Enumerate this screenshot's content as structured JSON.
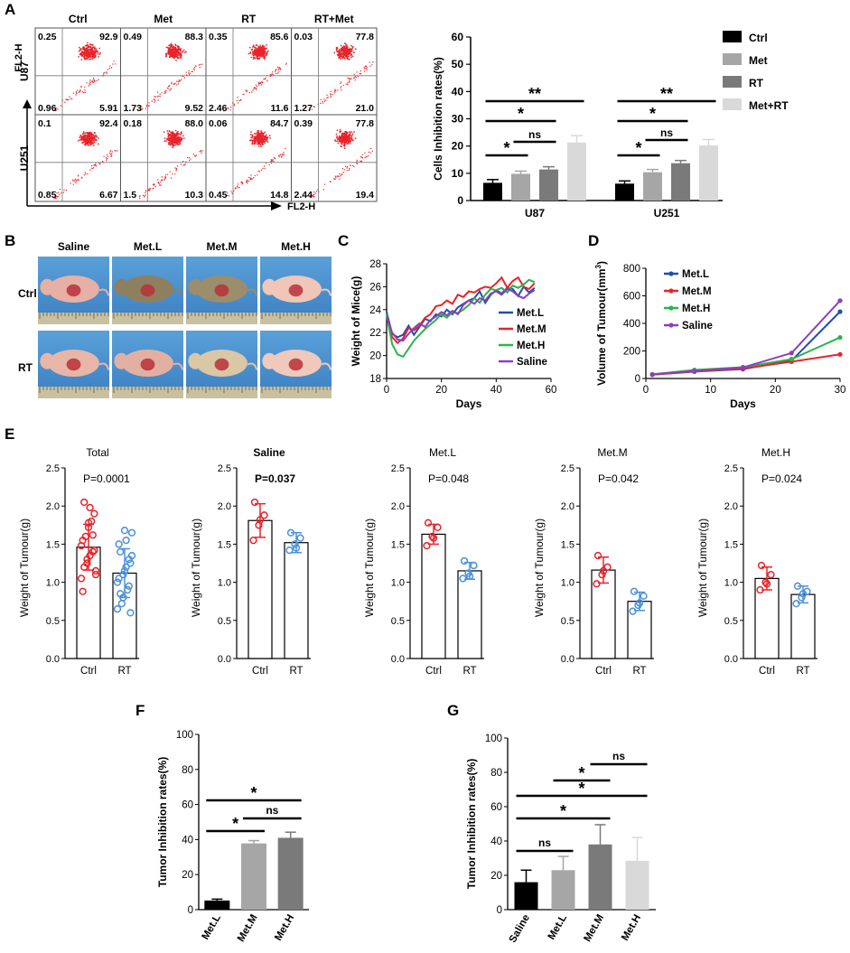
{
  "panels": {
    "A": "A",
    "B": "B",
    "C": "C",
    "D": "D",
    "E": "E",
    "F": "F",
    "G": "G"
  },
  "colors": {
    "ctrl": "#000000",
    "met": "#a6a6a6",
    "rt": "#7a7a7a",
    "met_rt": "#d9d9d9",
    "red": "#e8232a",
    "blue": "#4a90d9",
    "line_metL": "#1f4fa8",
    "line_metM": "#e8232a",
    "line_metH": "#2db34a",
    "line_saline": "#8b3fbf"
  },
  "flow": {
    "columns": [
      "Ctrl",
      "Met",
      "RT",
      "RT+Met"
    ],
    "rows": [
      "U87",
      "U251"
    ],
    "ylabel": "FL2-H",
    "xlabel": "FL2-H",
    "quadrants": [
      [
        [
          "0.25",
          "92.9",
          "0.96",
          "5.91"
        ],
        [
          "0.49",
          "88.3",
          "1.73",
          "9.52"
        ],
        [
          "0.35",
          "85.6",
          "2.46",
          "11.6"
        ],
        [
          "0.03",
          "77.8",
          "1.27",
          "21.0"
        ]
      ],
      [
        [
          "0.1",
          "92.4",
          "0.85",
          "6.67"
        ],
        [
          "0.18",
          "88.0",
          "1.5",
          "10.3"
        ],
        [
          "0.06",
          "84.7",
          "0.45",
          "14.8"
        ],
        [
          "0.39",
          "77.8",
          "2.44",
          "19.4"
        ]
      ]
    ]
  },
  "photos": {
    "columns": [
      "Saline",
      "Met.L",
      "Met.M",
      "Met.H"
    ],
    "rows": [
      "Ctrl",
      "RT"
    ]
  },
  "chart_data": [
    {
      "id": "A-bar",
      "type": "bar",
      "categories": [
        "U87",
        "U251"
      ],
      "series": [
        {
          "name": "Ctrl",
          "values": [
            6.5,
            6.2
          ],
          "errors": [
            1.2,
            1.0
          ]
        },
        {
          "name": "Met",
          "values": [
            9.8,
            10.4
          ],
          "errors": [
            1.0,
            1.0
          ]
        },
        {
          "name": "RT",
          "values": [
            11.4,
            13.7
          ],
          "errors": [
            1.0,
            1.0
          ]
        },
        {
          "name": "Met+RT",
          "values": [
            21.3,
            20.2
          ],
          "errors": [
            2.5,
            2.2
          ]
        }
      ],
      "ylabel": "Cells Inhibition rates(%)",
      "ylim": [
        0,
        60
      ],
      "yticks": [
        "0",
        "10",
        "20",
        "30",
        "40",
        "50",
        "60"
      ],
      "annotations": [
        "*",
        "ns",
        "*",
        "**",
        "*",
        "ns",
        "*",
        "**"
      ]
    },
    {
      "id": "C-line",
      "type": "line",
      "x": [
        0,
        2,
        4,
        6,
        8,
        10,
        12,
        14,
        16,
        18,
        20,
        22,
        24,
        26,
        28,
        30,
        32,
        34,
        36,
        38,
        40,
        42,
        44,
        46,
        48,
        50,
        52,
        54
      ],
      "series": [
        {
          "name": "Met.L",
          "values": [
            23.8,
            21.9,
            21.6,
            21.8,
            22.6,
            21.8,
            22.5,
            23.2,
            23.0,
            23.6,
            23.4,
            24.0,
            23.6,
            24.2,
            24.5,
            24.8,
            25.0,
            25.6,
            24.6,
            25.3,
            25.7,
            25.4,
            25.9,
            25.8,
            25.2,
            26.0,
            25.5,
            25.9
          ]
        },
        {
          "name": "Met.M",
          "values": [
            23.6,
            21.6,
            21.1,
            21.5,
            22.4,
            22.2,
            22.6,
            23.3,
            23.6,
            24.3,
            24.4,
            24.8,
            24.5,
            25.3,
            25.1,
            25.6,
            25.5,
            25.8,
            26.0,
            25.9,
            26.3,
            26.8,
            25.9,
            26.5,
            26.8,
            26.0,
            25.8,
            26.3
          ]
        },
        {
          "name": "Met.H",
          "values": [
            23.6,
            21.0,
            20.1,
            19.9,
            20.6,
            21.3,
            21.8,
            22.3,
            22.7,
            23.1,
            23.6,
            23.3,
            23.8,
            23.7,
            24.0,
            24.4,
            25.0,
            24.6,
            25.3,
            25.8,
            25.7,
            25.9,
            25.5,
            26.1,
            25.9,
            26.2,
            26.6,
            26.4
          ]
        },
        {
          "name": "Saline",
          "values": [
            23.4,
            22.0,
            21.4,
            21.3,
            21.9,
            22.4,
            22.8,
            22.5,
            23.1,
            23.4,
            23.8,
            23.5,
            23.9,
            23.6,
            24.4,
            24.8,
            24.5,
            25.0,
            24.8,
            25.4,
            25.6,
            25.3,
            25.8,
            25.6,
            25.2,
            25.0,
            25.4,
            25.7
          ]
        }
      ],
      "xlabel": "Days",
      "ylabel": "Weight of Mice(g)",
      "xlim": [
        0,
        60
      ],
      "ylim": [
        18,
        28
      ],
      "xticks": [
        "0",
        "20",
        "40",
        "60"
      ],
      "yticks": [
        "18",
        "20",
        "22",
        "24",
        "26",
        "28"
      ]
    },
    {
      "id": "D-line",
      "type": "line",
      "x": [
        1,
        7.5,
        15,
        22.5,
        30
      ],
      "series": [
        {
          "name": "Met.L",
          "values": [
            28,
            50,
            68,
            130,
            485
          ]
        },
        {
          "name": "Met.M",
          "values": [
            28,
            52,
            72,
            122,
            175
          ]
        },
        {
          "name": "Met.H",
          "values": [
            30,
            62,
            82,
            140,
            298
          ]
        },
        {
          "name": "Saline",
          "values": [
            30,
            55,
            80,
            185,
            565
          ]
        }
      ],
      "xlabel": "Days",
      "ylabel": "Volume of Tumour(mm3)",
      "ylabel_main": "Volume of Tumour(mm",
      "ylabel_sup": "3",
      "ylabel_end": ")",
      "xlim": [
        0,
        30
      ],
      "ylim": [
        0,
        800
      ],
      "xticks": [
        "0",
        "10",
        "20",
        "30"
      ],
      "yticks": [
        "0",
        "200",
        "400",
        "600",
        "800"
      ]
    },
    {
      "id": "E-scatter",
      "type": "bar",
      "ylabel": "Weight of Tumour(g)",
      "categories": [
        "Ctrl",
        "RT"
      ],
      "yticks": [
        "0.0",
        "0.5",
        "1.0",
        "1.5",
        "2.0",
        "2.5"
      ],
      "ylim": [
        0,
        2.5
      ],
      "subplots": [
        {
          "title": "Total",
          "p": "P=0.0001",
          "means": [
            1.46,
            1.12
          ],
          "sd": [
            0.3,
            0.32
          ],
          "points": [
            [
              1.05,
              1.25,
              1.4,
              1.55,
              1.72,
              1.9,
              2.05,
              1.35,
              1.15,
              1.6,
              1.8,
              1.48,
              1.3,
              1.62,
              0.88,
              1.78,
              1.42,
              1.2,
              1.98,
              1.1
            ],
            [
              0.65,
              0.8,
              0.95,
              1.05,
              1.15,
              1.25,
              1.4,
              1.55,
              1.65,
              0.72,
              0.9,
              1.0,
              1.1,
              1.3,
              1.5,
              1.68,
              0.6,
              0.85,
              1.2,
              1.35
            ]
          ]
        },
        {
          "title": "Saline",
          "p": "P=0.037",
          "means": [
            1.81,
            1.52
          ],
          "sd": [
            0.22,
            0.13
          ],
          "points": [
            [
              1.55,
              1.75,
              1.88,
              2.05,
              1.82
            ],
            [
              1.42,
              1.5,
              1.58,
              1.65,
              1.45
            ]
          ]
        },
        {
          "title": "Met.L",
          "p": "P=0.048",
          "means": [
            1.63,
            1.15
          ],
          "sd": [
            0.13,
            0.11
          ],
          "points": [
            [
              1.48,
              1.6,
              1.72,
              1.78,
              1.58
            ],
            [
              1.05,
              1.12,
              1.22,
              1.28,
              1.08
            ]
          ]
        },
        {
          "title": "Met.M",
          "p": "P=0.042",
          "means": [
            1.16,
            0.75
          ],
          "sd": [
            0.17,
            0.12
          ],
          "points": [
            [
              0.98,
              1.1,
              1.2,
              1.35,
              1.15
            ],
            [
              0.62,
              0.7,
              0.82,
              0.88,
              0.73
            ]
          ]
        },
        {
          "title": "Met.H",
          "p": "P=0.024",
          "means": [
            1.05,
            0.84
          ],
          "sd": [
            0.15,
            0.11
          ],
          "points": [
            [
              0.9,
              1.0,
              1.1,
              1.22,
              0.98
            ],
            [
              0.72,
              0.8,
              0.88,
              0.95,
              0.85
            ]
          ]
        }
      ]
    },
    {
      "id": "F-bar",
      "type": "bar",
      "categories": [
        "Met.L",
        "Met.M",
        "Met.H"
      ],
      "values": [
        5.2,
        37.8,
        41.0
      ],
      "errors": [
        0.8,
        1.6,
        3.2
      ],
      "ylabel": "Tumor Inhibition rates(%)",
      "ylim": [
        0,
        100
      ],
      "yticks": [
        "0",
        "20",
        "40",
        "60",
        "80",
        "100"
      ],
      "annotations": [
        "*",
        "*",
        "ns"
      ]
    },
    {
      "id": "G-bar",
      "type": "bar",
      "categories": [
        "Saline",
        "Met.L",
        "Met.M",
        "Met.H"
      ],
      "values": [
        16.0,
        23.0,
        38.0,
        28.5
      ],
      "errors": [
        7,
        8,
        11.5,
        13.5
      ],
      "ylabel": "Tumor Inhibition rates(%)",
      "ylim": [
        0,
        100
      ],
      "yticks": [
        "0",
        "20",
        "40",
        "60",
        "80",
        "100"
      ],
      "annotations": [
        "ns",
        "*",
        "*",
        "*",
        "ns"
      ]
    }
  ]
}
